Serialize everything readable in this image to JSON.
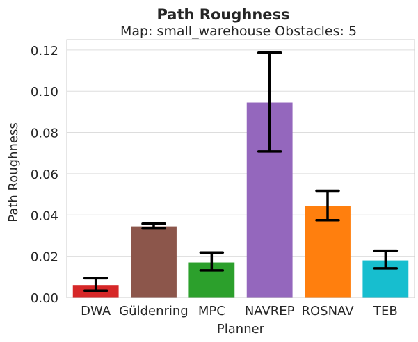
{
  "chart_data": {
    "type": "bar",
    "title": "Path Roughness",
    "subtitle": "Map: small_warehouse Obstacles: 5",
    "xlabel": "Planner",
    "ylabel": "Path Roughness",
    "ylim": [
      0,
      0.125
    ],
    "yticks": [
      "0.00",
      "0.02",
      "0.04",
      "0.06",
      "0.08",
      "0.10",
      "0.12"
    ],
    "grid": true,
    "categories": [
      "DWA",
      "Güldenring",
      "MPC",
      "NAVREP",
      "ROSNAV",
      "TEB"
    ],
    "values": [
      0.006,
      0.0345,
      0.017,
      0.0945,
      0.0443,
      0.018
    ],
    "error_low": [
      0.0033,
      0.0335,
      0.0132,
      0.0708,
      0.0375,
      0.0142
    ],
    "error_high": [
      0.0093,
      0.0358,
      0.0218,
      0.1187,
      0.0517,
      0.0227
    ],
    "colors": [
      "#d62728",
      "#8c564b",
      "#2ca02c",
      "#9467bd",
      "#ff7f0e",
      "#17becf"
    ]
  }
}
